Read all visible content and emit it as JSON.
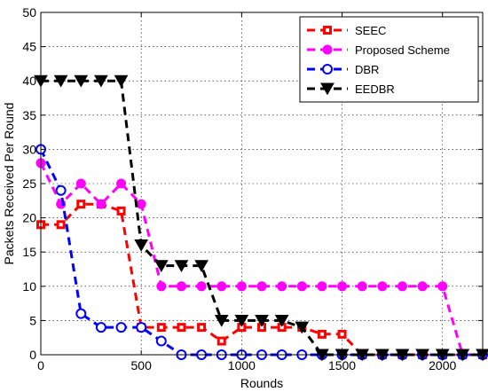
{
  "chart_data": {
    "type": "line",
    "xlabel": "Rounds",
    "ylabel": "Packets Received Per Round",
    "xlim": [
      0,
      2200
    ],
    "ylim": [
      0,
      50
    ],
    "xticks": [
      0,
      500,
      1000,
      1500,
      2000
    ],
    "xtick_labels": [
      "0",
      "500",
      "1000",
      "1500",
      "2000"
    ],
    "yticks": [
      0,
      5,
      10,
      15,
      20,
      25,
      30,
      35,
      40,
      45,
      50
    ],
    "ytick_labels": [
      "0",
      "5",
      "10",
      "15",
      "20",
      "25",
      "30",
      "35",
      "40",
      "45",
      "50"
    ],
    "grid": true,
    "legend_position": "top-right",
    "series": [
      {
        "name": "SEEC",
        "color": "#ff0000",
        "marker": "square",
        "x": [
          0,
          100,
          200,
          300,
          400,
          500,
          600,
          700,
          800,
          900,
          1000,
          1100,
          1200,
          1300,
          1400,
          1500,
          1600,
          1700,
          1800,
          1900,
          2000,
          2100,
          2200
        ],
        "y": [
          19,
          19,
          22,
          22,
          21,
          4,
          4,
          4,
          4,
          2,
          4,
          4,
          4,
          4,
          3,
          3,
          0,
          0,
          0,
          0,
          0,
          0,
          0
        ]
      },
      {
        "name": "Proposed Scheme",
        "color": "#ff00ff",
        "marker": "circle",
        "x": [
          0,
          100,
          200,
          300,
          400,
          500,
          600,
          700,
          800,
          900,
          1000,
          1100,
          1200,
          1300,
          1400,
          1500,
          1600,
          1700,
          1800,
          1900,
          2000,
          2100,
          2200
        ],
        "y": [
          28,
          22,
          25,
          22,
          25,
          22,
          10,
          10,
          10,
          10,
          10,
          10,
          10,
          10,
          10,
          10,
          10,
          10,
          10,
          10,
          10,
          0,
          0
        ]
      },
      {
        "name": "DBR",
        "color": "#0000ff",
        "marker": "circle-open",
        "x": [
          0,
          100,
          200,
          300,
          400,
          500,
          600,
          700,
          800,
          900,
          1000,
          1100,
          1200,
          1300,
          1400,
          1500,
          1600,
          1700,
          1800,
          1900,
          2000,
          2100,
          2200
        ],
        "y": [
          30,
          24,
          6,
          4,
          4,
          4,
          2,
          0,
          0,
          0,
          0,
          0,
          0,
          0,
          0,
          0,
          0,
          0,
          0,
          0,
          0,
          0,
          0
        ]
      },
      {
        "name": "EEDBR",
        "color": "#000000",
        "marker": "triangle-down",
        "x": [
          0,
          100,
          200,
          300,
          400,
          500,
          600,
          700,
          800,
          900,
          1000,
          1100,
          1200,
          1300,
          1400,
          1500,
          1600,
          1700,
          1800,
          1900,
          2000,
          2100,
          2200
        ],
        "y": [
          40,
          40,
          40,
          40,
          40,
          16,
          13,
          13,
          13,
          5,
          5,
          5,
          5,
          4,
          0,
          0,
          0,
          0,
          0,
          0,
          0,
          0,
          0
        ]
      }
    ]
  }
}
